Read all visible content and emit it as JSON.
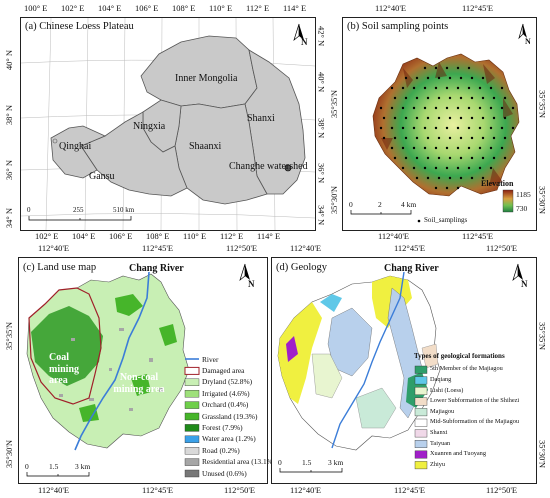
{
  "panel_a": {
    "title": "(a) Chinese Loess Plateau",
    "top_ticks": [
      "100° E",
      "102° E",
      "104° E",
      "106° E",
      "108° E",
      "110° E",
      "112° E",
      "114° E"
    ],
    "bottom_ticks": [
      "102° E",
      "104° E",
      "106° E",
      "108° E",
      "110° E",
      "112° E",
      "114° E"
    ],
    "left_ticks": [
      "40° N",
      "38° N",
      "36° N",
      "34° N"
    ],
    "right_ticks": [
      "42° N",
      "40° N",
      "38° N",
      "36° N",
      "34° N"
    ],
    "labels": {
      "inner_mongolia": "Inner Mongolia",
      "ningxia": "Ningxia",
      "qinghai": "Qinghai",
      "gansu": "Gansu",
      "shaanxi": "Shaanxi",
      "shanxi": "Shanxi",
      "changhe": "Changhe watershed"
    },
    "scale": {
      "zero": "0",
      "mid": "255",
      "end": "510 km"
    },
    "north": "N"
  },
  "panel_b": {
    "title": "(b) Soil sampling points",
    "top_ticks": [
      "112°40'E",
      "112°45'E"
    ],
    "bottom_ticks": [
      "112°40'E",
      "112°45'E"
    ],
    "left_ticks": [
      "35°35'N",
      "35°30'N"
    ],
    "right_ticks": [
      "35°35'N",
      "35°30'N"
    ],
    "elevation_label": "Elevation",
    "elev_high": "1185",
    "elev_low": "730",
    "scale": {
      "zero": "0",
      "mid": "2",
      "end": "4 km"
    },
    "sampling_label": "Soil_samplings",
    "north": "N"
  },
  "panel_c": {
    "title": "(c) Land use map",
    "top_ticks": [
      "112°40'E",
      "112°45'E",
      "112°50'E"
    ],
    "bottom_ticks": [
      "112°40'E",
      "112°45'E",
      "112°50'E"
    ],
    "left_ticks": [
      "35°35'N",
      "35°30'N"
    ],
    "river_name": "Chang River",
    "coal_area": "Coal mining area",
    "noncoal_area": "Non-coal mining area",
    "scale": {
      "zero": "0",
      "a": "1.5",
      "end": "3 km"
    },
    "north": "N",
    "legend": [
      {
        "label": "River",
        "color": "#3b7dd8",
        "kind": "line"
      },
      {
        "label": "Damaged area",
        "color": "#ffffff",
        "kind": "outline"
      },
      {
        "label": "Dryland (52.8%)",
        "color": "#c8efb4"
      },
      {
        "label": "Irrigated (4.6%)",
        "color": "#9ee07a"
      },
      {
        "label": "Orchard (0.4%)",
        "color": "#6fcf4a"
      },
      {
        "label": "Grassland (19.3%)",
        "color": "#46b52a"
      },
      {
        "label": "Forest (7.9%)",
        "color": "#1f8a1a"
      },
      {
        "label": "Water area (1.2%)",
        "color": "#3aa0e8"
      },
      {
        "label": "Road (0.2%)",
        "color": "#d9d9d9"
      },
      {
        "label": "Residential area (13.1%)",
        "color": "#a6a6a6"
      },
      {
        "label": "Unused (0.6%)",
        "color": "#777777"
      }
    ]
  },
  "panel_d": {
    "title": "(d) Geology",
    "top_ticks": [
      "112°40'E",
      "112°45'E",
      "112°50'E"
    ],
    "bottom_ticks": [
      "112°40'E",
      "112°45'E",
      "112°50'E"
    ],
    "right_ticks": [
      "35°35'N",
      "35°30'N"
    ],
    "river_name": "Chang River",
    "legend_title": "Types of geological formations",
    "scale": {
      "zero": "0",
      "a": "1.5",
      "end": "3 km"
    },
    "north": "N",
    "legend": [
      {
        "label": "5th Member of the Majiagou",
        "color": "#2e9e6a"
      },
      {
        "label": "Daqiang",
        "color": "#5fc8e8"
      },
      {
        "label": "Lishi (Loess)",
        "color": "#e8f5d0"
      },
      {
        "label": "Lower Subformation of the Shihezi",
        "color": "#f2ddc8"
      },
      {
        "label": "Majiagou",
        "color": "#c9ead8"
      },
      {
        "label": "Mid-Subformation of the Majiagou",
        "color": "#ffffff"
      },
      {
        "label": "Shanxi",
        "color": "#f0d8e8"
      },
      {
        "label": "Taiyuan",
        "color": "#b8d0ec"
      },
      {
        "label": "Xuanren and Tuoyang",
        "color": "#a020c8"
      },
      {
        "label": "Zhiyu",
        "color": "#f0f040"
      }
    ]
  }
}
